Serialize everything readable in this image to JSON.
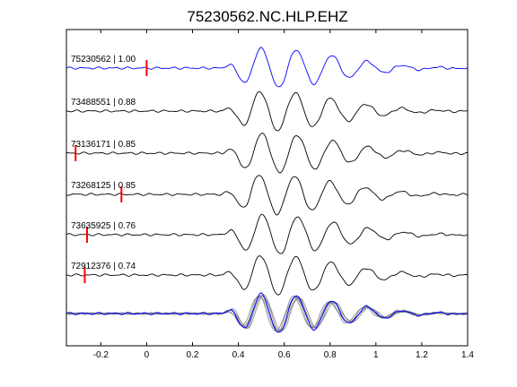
{
  "chart_data": {
    "type": "line",
    "title": "75230562.NC.HLP.EHZ",
    "xlim": [
      -0.35,
      1.4
    ],
    "xticks": [
      -0.2,
      0,
      0.2,
      0.4,
      0.6,
      0.8,
      1,
      1.2,
      1.4
    ],
    "xtick_labels": [
      "-0.2",
      "0",
      "0.2",
      "0.4",
      "0.6",
      "0.8",
      "1",
      "1.2",
      "1.4"
    ],
    "grid": false,
    "traces": [
      {
        "label": "75230562 | 1.00",
        "color": "#0000ff",
        "pick_time": 0.0
      },
      {
        "label": "73488551 | 0.88",
        "color": "#000000",
        "pick_time": null
      },
      {
        "label": "73136171 | 0.85",
        "color": "#000000",
        "pick_time": -0.31
      },
      {
        "label": "73268125 | 0.85",
        "color": "#000000",
        "pick_time": -0.11
      },
      {
        "label": "73635925 | 0.76",
        "color": "#000000",
        "pick_time": -0.26
      },
      {
        "label": "72912376 | 0.74",
        "color": "#000000",
        "pick_time": -0.27
      }
    ],
    "stack": {
      "label": "",
      "color_overlay": "#808080",
      "color_master": "#0000ff"
    },
    "pick_color": "#ff0000"
  }
}
